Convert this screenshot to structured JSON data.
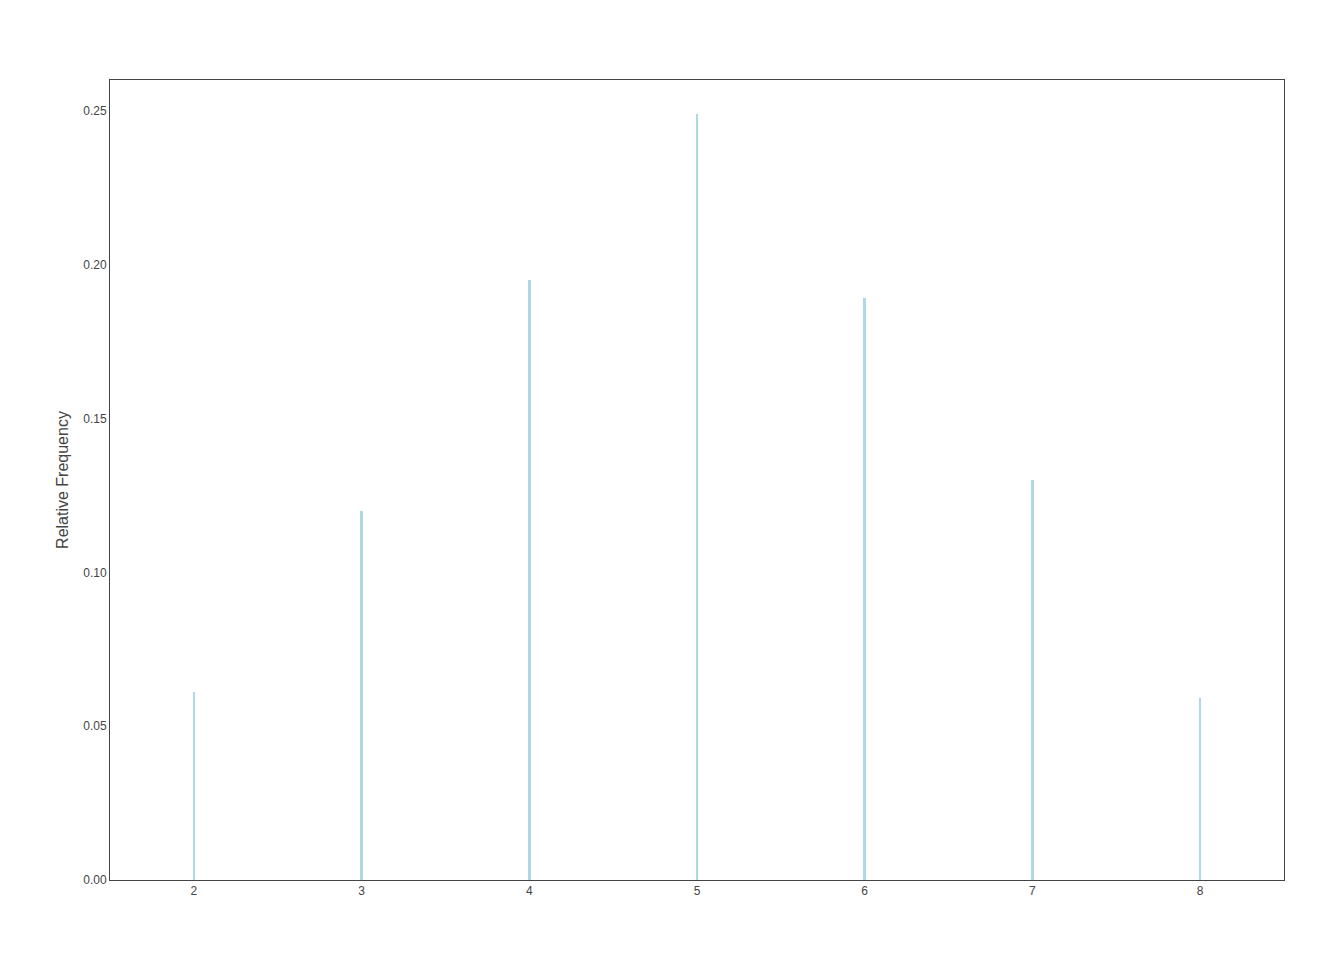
{
  "chart_data": {
    "type": "stem",
    "ylabel": "Relative Frequency",
    "x": [
      2,
      3,
      4,
      5,
      6,
      7,
      8
    ],
    "values": [
      0.061,
      0.12,
      0.195,
      0.249,
      0.189,
      0.13,
      0.059
    ],
    "color": "#add8e6",
    "xlim": [
      1.5,
      8.5
    ],
    "xticks": [
      2,
      3,
      4,
      5,
      6,
      7,
      8
    ],
    "ylim": [
      0.0,
      0.26
    ],
    "yticks": [
      {
        "value": 0.0,
        "label": "0.00"
      },
      0.05,
      {
        "value": 0.1,
        "label": "0.10"
      },
      0.15,
      {
        "value": 0.2,
        "label": "0.20"
      },
      0.25
    ],
    "grid": false
  }
}
